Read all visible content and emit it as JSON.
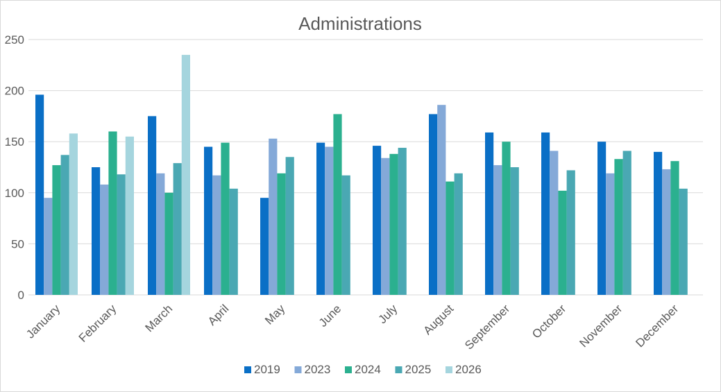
{
  "chart_data": {
    "type": "bar",
    "title": "Administrations",
    "xlabel": "",
    "ylabel": "",
    "ylim": [
      0,
      250
    ],
    "yticks": [
      0,
      50,
      100,
      150,
      200,
      250
    ],
    "grid": true,
    "legend_position": "bottom",
    "categories": [
      "January",
      "February",
      "March",
      "April",
      "May",
      "June",
      "July",
      "August",
      "September",
      "October",
      "November",
      "December"
    ],
    "series": [
      {
        "name": "2019",
        "color": "#0a6fc6",
        "values": [
          196,
          125,
          175,
          145,
          95,
          149,
          146,
          177,
          159,
          159,
          150,
          140
        ]
      },
      {
        "name": "2023",
        "color": "#84a9d8",
        "values": [
          95,
          108,
          119,
          117,
          153,
          145,
          134,
          186,
          127,
          141,
          119,
          123
        ]
      },
      {
        "name": "2024",
        "color": "#2bb08f",
        "values": [
          127,
          160,
          100,
          149,
          119,
          177,
          138,
          111,
          150,
          102,
          133,
          131
        ]
      },
      {
        "name": "2025",
        "color": "#4aa8b3",
        "values": [
          137,
          118,
          129,
          104,
          135,
          117,
          144,
          119,
          125,
          122,
          141,
          104
        ]
      },
      {
        "name": "2026",
        "color": "#a5d5de",
        "values": [
          158,
          155,
          235,
          null,
          null,
          null,
          null,
          null,
          null,
          null,
          null,
          null
        ]
      }
    ]
  }
}
